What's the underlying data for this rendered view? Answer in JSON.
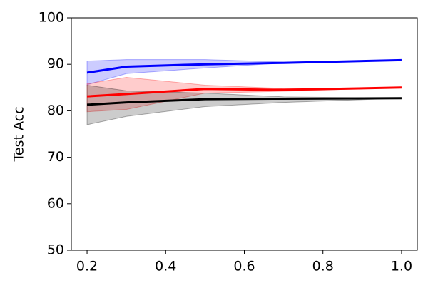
{
  "chart_data": {
    "type": "line",
    "y_label": "Test Acc",
    "x": [
      0.2,
      0.3,
      0.5,
      0.7,
      1.0
    ],
    "xlim": [
      0.16,
      1.04
    ],
    "xticks": [
      0.2,
      0.4,
      0.6,
      0.8,
      {
        "value": 1,
        "label": "1.0"
      }
    ],
    "ylim": [
      50,
      100
    ],
    "yticks": [
      50,
      60,
      70,
      80,
      90,
      100
    ],
    "series": [
      {
        "color": "#0000ff",
        "values": [
          88.2,
          89.5,
          90.0,
          90.3,
          90.9
        ],
        "lower": [
          85.6,
          88.0,
          89.2,
          90.3,
          90.9
        ],
        "upper": [
          90.7,
          91.0,
          91.0,
          90.5,
          90.9
        ]
      },
      {
        "color": "#ff0000",
        "values": [
          83.1,
          83.6,
          84.7,
          84.5,
          85.0
        ],
        "lower": [
          79.8,
          80.3,
          83.8,
          84.2,
          85.0
        ],
        "upper": [
          85.8,
          87.2,
          85.5,
          84.8,
          85.0
        ]
      },
      {
        "color": "#000000",
        "values": [
          81.3,
          81.8,
          82.5,
          82.6,
          82.7
        ],
        "lower": [
          77.0,
          78.8,
          80.9,
          81.8,
          82.7
        ],
        "upper": [
          85.5,
          84.3,
          83.8,
          83.0,
          82.7
        ]
      }
    ]
  }
}
